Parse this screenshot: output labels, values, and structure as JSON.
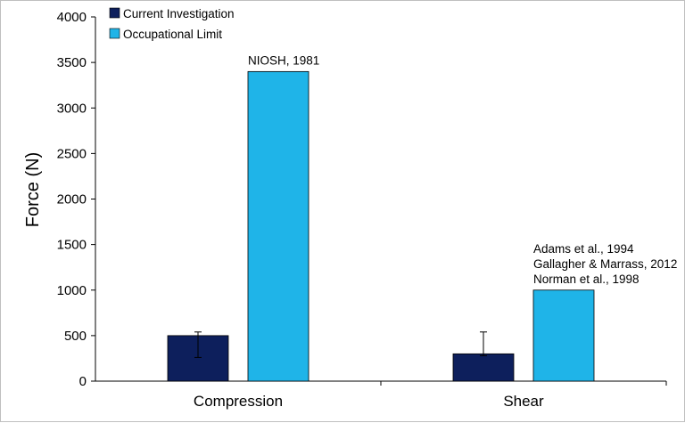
{
  "chart_data": {
    "type": "bar",
    "title": "",
    "xlabel": "",
    "ylabel": "Force (N)",
    "ylim": [
      0,
      4000
    ],
    "yticks": [
      0,
      500,
      1000,
      1500,
      2000,
      2500,
      3000,
      3500,
      4000
    ],
    "categories": [
      "Compression",
      "Shear"
    ],
    "series": [
      {
        "name": "Current Investigation",
        "color": "#0d1f5c",
        "values": [
          500,
          300
        ],
        "error_upper": [
          540,
          540
        ],
        "error_lower": [
          260,
          280
        ]
      },
      {
        "name": "Occupational Limit",
        "color": "#1fb4e8",
        "values": [
          3400,
          1000
        ]
      }
    ],
    "annotations": [
      {
        "category": "Compression",
        "series": "Occupational Limit",
        "lines": [
          "NIOSH, 1981"
        ]
      },
      {
        "category": "Shear",
        "series": "Occupational Limit",
        "lines": [
          "Adams et al., 1994",
          "Gallagher &  Marrass, 2012",
          "Norman et al., 1998"
        ]
      }
    ],
    "legend_position": "top-left",
    "grid": false
  }
}
